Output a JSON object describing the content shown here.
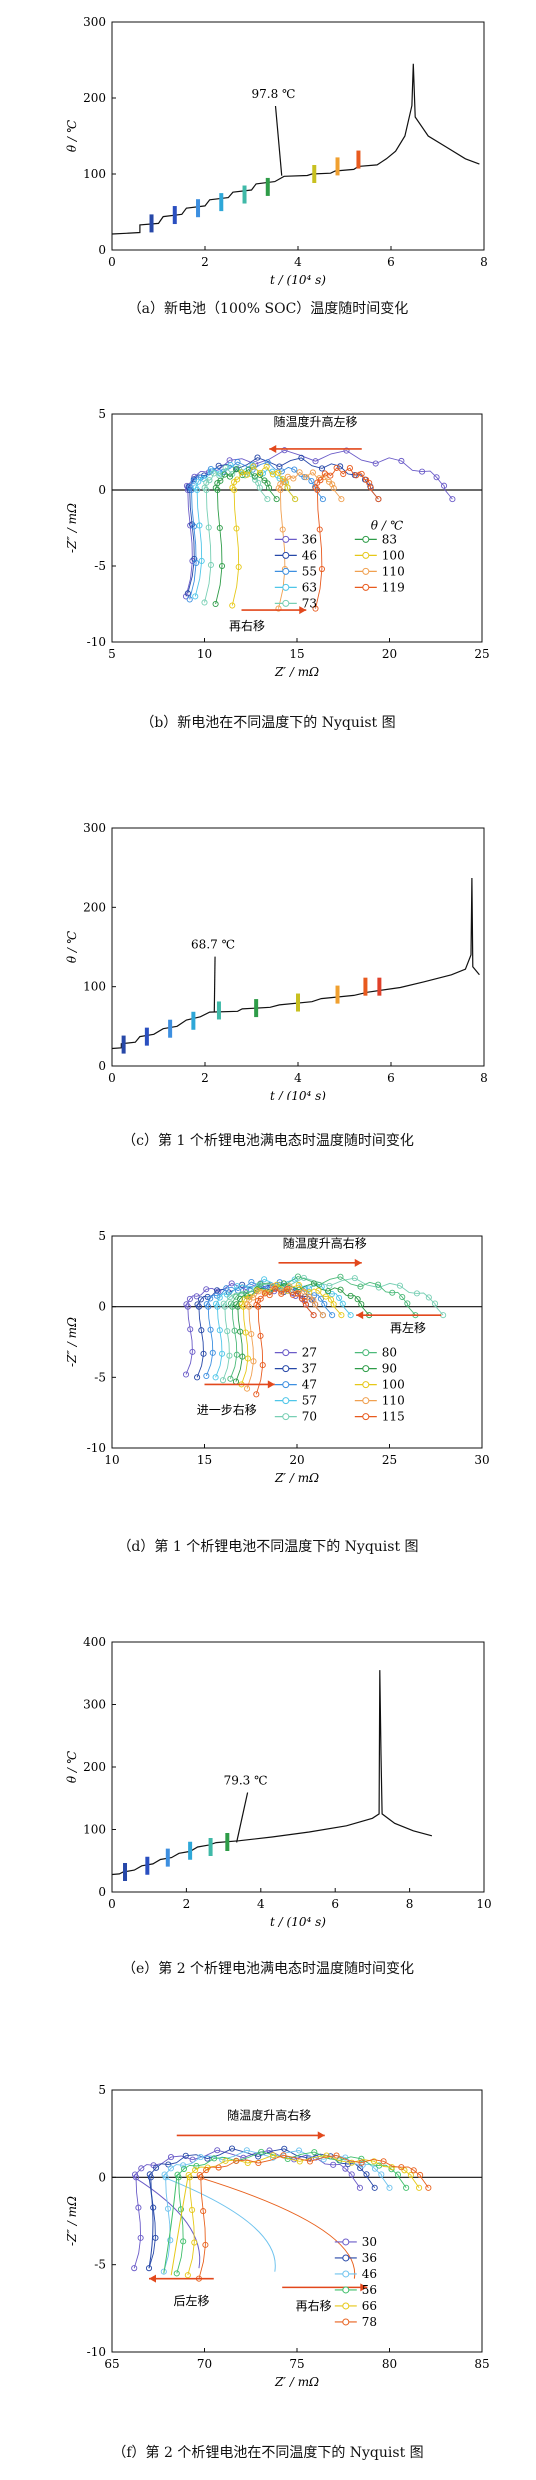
{
  "charts": [
    {
      "id": "a",
      "kind": "temp",
      "caption": "（a）新电池（100% SOC）温度随时间变化",
      "ylabel": "θ / ℃",
      "xlabel": "t / (10⁴ s)",
      "xlim": [
        0,
        8
      ],
      "ylim": [
        0,
        300
      ],
      "xticks": [
        0,
        2,
        4,
        6,
        8
      ],
      "yticks": [
        0,
        100,
        200,
        300
      ],
      "annotation": {
        "text": "97.8 ℃",
        "x": 3.65,
        "y": 97.8,
        "tx": 3.0,
        "ty": 200
      },
      "line": [
        [
          0,
          21
        ],
        [
          0.3,
          22
        ],
        [
          0.6,
          23
        ],
        [
          0.6,
          33
        ],
        [
          1.0,
          35
        ],
        [
          1.1,
          44
        ],
        [
          1.5,
          47
        ],
        [
          1.6,
          55
        ],
        [
          2.0,
          58
        ],
        [
          2.1,
          66
        ],
        [
          2.5,
          69
        ],
        [
          2.6,
          76
        ],
        [
          3.0,
          79
        ],
        [
          3.1,
          87
        ],
        [
          3.5,
          90
        ],
        [
          3.7,
          97
        ],
        [
          4.2,
          98
        ],
        [
          4.3,
          100
        ],
        [
          4.7,
          101
        ],
        [
          4.8,
          104
        ],
        [
          5.2,
          106
        ],
        [
          5.3,
          110
        ],
        [
          5.7,
          112
        ],
        [
          5.9,
          120
        ],
        [
          6.1,
          130
        ],
        [
          6.3,
          150
        ],
        [
          6.45,
          190
        ],
        [
          6.48,
          245
        ],
        [
          6.52,
          175
        ],
        [
          6.8,
          150
        ],
        [
          7.2,
          135
        ],
        [
          7.6,
          120
        ],
        [
          7.9,
          113
        ]
      ],
      "markers": [
        [
          0.85,
          35
        ],
        [
          1.35,
          46
        ],
        [
          1.85,
          55
        ],
        [
          2.35,
          63
        ],
        [
          2.85,
          73
        ],
        [
          3.35,
          83
        ],
        [
          4.35,
          100
        ],
        [
          4.85,
          110
        ],
        [
          5.3,
          119
        ]
      ]
    },
    {
      "id": "b",
      "kind": "nyq",
      "caption": "（b）新电池在不同温度下的 Nyquist 图",
      "ylabel": "-Z″ / mΩ",
      "xlabel": "Z′ / mΩ",
      "xlim": [
        5,
        25
      ],
      "ylim": [
        -10,
        5
      ],
      "xticks": [
        5,
        10,
        15,
        20,
        25
      ],
      "yticks": [
        -10,
        -5,
        0,
        5
      ],
      "arrows": [
        {
          "text": "随温度升高左移",
          "x1": 18.5,
          "x2": 13.5,
          "y": 2.7,
          "tx": 16.0,
          "ty": 4.2
        },
        {
          "text": "再右移",
          "x1": 12.0,
          "x2": 15.5,
          "y": -7.9,
          "tx": 12.3,
          "ty": -9.2
        }
      ],
      "legend_title": "θ / ℃",
      "legend": [
        "36",
        "83",
        "46",
        "100",
        "55",
        "110",
        "63",
        "119",
        "73"
      ],
      "series": [
        {
          "name": "36",
          "start": 9.0,
          "end": 23.0,
          "peak": 2.7,
          "depth": -7.0,
          "color": "#6b5cc8",
          "tail": 0
        },
        {
          "name": "46",
          "start": 9.1,
          "end": 19.0,
          "peak": 2.2,
          "depth": -6.8,
          "color": "#2748a8",
          "tail": 0
        },
        {
          "name": "55",
          "start": 9.2,
          "end": 16.0,
          "peak": 1.9,
          "depth": -7.2,
          "color": "#3d8fe0",
          "tail": 0
        },
        {
          "name": "63",
          "start": 9.5,
          "end": 14.5,
          "peak": 1.7,
          "depth": -7.0,
          "color": "#4fc6e8",
          "tail": 0
        },
        {
          "name": "73",
          "start": 10.0,
          "end": 13.0,
          "peak": 1.5,
          "depth": -7.4,
          "color": "#78cfb4",
          "tail": 0
        },
        {
          "name": "83",
          "start": 10.6,
          "end": 13.5,
          "peak": 1.4,
          "depth": -7.5,
          "color": "#2e9c48",
          "tail": 0
        },
        {
          "name": "100",
          "start": 11.5,
          "end": 14.5,
          "peak": 1.6,
          "depth": -7.6,
          "color": "#e6c818",
          "tail": 0
        },
        {
          "name": "110",
          "start": 14.0,
          "end": 17.0,
          "peak": 1.2,
          "depth": -7.8,
          "color": "#f0a050",
          "tail": 0
        },
        {
          "name": "119",
          "start": 16.0,
          "end": 19.0,
          "peak": 1.5,
          "depth": -7.8,
          "color": "#e85a1e",
          "tail": 0
        }
      ]
    },
    {
      "id": "c",
      "kind": "temp",
      "caption": "（c）第 1 个析锂电池满电态时温度随时间变化",
      "ylabel": "θ / ℃",
      "xlabel": "t / (10⁴ s)",
      "xlim": [
        0,
        8
      ],
      "ylim": [
        0,
        300
      ],
      "xticks": [
        0,
        2,
        4,
        6,
        8
      ],
      "yticks": [
        0,
        100,
        200,
        300
      ],
      "annotation": {
        "text": "68.7 ℃",
        "x": 2.2,
        "y": 68.7,
        "tx": 1.7,
        "ty": 148
      },
      "line": [
        [
          0,
          22
        ],
        [
          0.2,
          23
        ],
        [
          0.2,
          28
        ],
        [
          0.5,
          30
        ],
        [
          0.6,
          37
        ],
        [
          0.9,
          40
        ],
        [
          1.1,
          47
        ],
        [
          1.4,
          50
        ],
        [
          1.6,
          58
        ],
        [
          1.9,
          62
        ],
        [
          2.1,
          68
        ],
        [
          2.7,
          69
        ],
        [
          2.8,
          72
        ],
        [
          3.4,
          74
        ],
        [
          3.6,
          77
        ],
        [
          4.3,
          81
        ],
        [
          4.5,
          85
        ],
        [
          5.2,
          89
        ],
        [
          5.5,
          93
        ],
        [
          6.2,
          99
        ],
        [
          6.7,
          106
        ],
        [
          7.3,
          115
        ],
        [
          7.6,
          122
        ],
        [
          7.72,
          140
        ],
        [
          7.74,
          237
        ],
        [
          7.76,
          125
        ],
        [
          7.9,
          115
        ]
      ],
      "markers": [
        [
          0.25,
          27
        ],
        [
          0.75,
          37
        ],
        [
          1.25,
          47
        ],
        [
          1.75,
          57
        ],
        [
          2.3,
          70
        ],
        [
          3.1,
          73
        ],
        [
          4.0,
          80
        ],
        [
          4.85,
          90
        ],
        [
          5.45,
          100
        ],
        [
          5.75,
          100
        ]
      ]
    },
    {
      "id": "d",
      "kind": "nyq",
      "caption": "（d）第 1 个析锂电池不同温度下的 Nyquist 图",
      "ylabel": "-Z″ / mΩ",
      "xlabel": "Z′ / mΩ",
      "xlim": [
        10,
        30
      ],
      "ylim": [
        -10,
        5
      ],
      "xticks": [
        10,
        15,
        20,
        25,
        30
      ],
      "yticks": [
        -10,
        -5,
        0,
        5
      ],
      "arrows": [
        {
          "text": "随温度升高右移",
          "x1": 19.0,
          "x2": 23.5,
          "y": 3.1,
          "tx": 21.5,
          "ty": 4.2
        },
        {
          "text": "再左移",
          "x1": 27.8,
          "x2": 23.2,
          "y": -0.6,
          "tx": 26.0,
          "ty": -1.8
        },
        {
          "text": "进一步右移",
          "x1": 15.0,
          "x2": 18.8,
          "y": -5.5,
          "tx": 16.2,
          "ty": -7.6
        }
      ],
      "legend_title": "",
      "legend": [
        "27",
        "80",
        "37",
        "90",
        "47",
        "100",
        "57",
        "110",
        "70",
        "115"
      ],
      "series": [
        {
          "name": "27",
          "start": 14.0,
          "end": 20.5,
          "peak": 1.7,
          "depth": -4.8,
          "color": "#6b5cc8",
          "tail": 0
        },
        {
          "name": "37",
          "start": 14.6,
          "end": 21.0,
          "peak": 1.6,
          "depth": -5.0,
          "color": "#2748a8",
          "tail": 0
        },
        {
          "name": "47",
          "start": 15.1,
          "end": 21.5,
          "peak": 1.8,
          "depth": -4.9,
          "color": "#3d8fe0",
          "tail": 0
        },
        {
          "name": "57",
          "start": 15.6,
          "end": 22.5,
          "peak": 2.0,
          "depth": -5.0,
          "color": "#4fc6e8",
          "tail": 0
        },
        {
          "name": "70",
          "start": 16.0,
          "end": 27.5,
          "peak": 2.1,
          "depth": -5.2,
          "color": "#78cfb4",
          "tail": 0
        },
        {
          "name": "80",
          "start": 16.4,
          "end": 26.0,
          "peak": 2.2,
          "depth": -5.1,
          "color": "#4cba7a",
          "tail": 0
        },
        {
          "name": "90",
          "start": 16.7,
          "end": 23.5,
          "peak": 1.7,
          "depth": -5.3,
          "color": "#2e9c48",
          "tail": 0
        },
        {
          "name": "100",
          "start": 17.0,
          "end": 22.0,
          "peak": 1.6,
          "depth": -5.5,
          "color": "#e6c818",
          "tail": 0
        },
        {
          "name": "110",
          "start": 17.3,
          "end": 21.0,
          "peak": 1.5,
          "depth": -5.8,
          "color": "#f0a050",
          "tail": 0
        },
        {
          "name": "115",
          "start": 17.8,
          "end": 20.5,
          "peak": 1.3,
          "depth": -6.2,
          "color": "#e85a1e",
          "tail": 0
        }
      ]
    },
    {
      "id": "e",
      "kind": "temp",
      "caption": "（e）第 2 个析锂电池满电态时温度随时间变化",
      "ylabel": "θ / ℃",
      "xlabel": "t / (10⁴ s)",
      "xlim": [
        0,
        10
      ],
      "ylim": [
        0,
        400
      ],
      "xticks": [
        0,
        2,
        4,
        6,
        8,
        10
      ],
      "yticks": [
        0,
        100,
        200,
        300,
        400
      ],
      "annotation": {
        "text": "79.3 ℃",
        "x": 3.35,
        "y": 79.3,
        "tx": 3.0,
        "ty": 172
      },
      "line": [
        [
          0,
          28
        ],
        [
          0.2,
          29
        ],
        [
          0.3,
          32
        ],
        [
          0.6,
          35
        ],
        [
          0.8,
          42
        ],
        [
          1.1,
          45
        ],
        [
          1.3,
          52
        ],
        [
          1.6,
          55
        ],
        [
          1.8,
          62
        ],
        [
          2.1,
          65
        ],
        [
          2.3,
          72
        ],
        [
          2.6,
          75
        ],
        [
          2.8,
          79
        ],
        [
          3.4,
          82
        ],
        [
          4.3,
          88
        ],
        [
          5.3,
          96
        ],
        [
          6.3,
          106
        ],
        [
          7.0,
          118
        ],
        [
          7.18,
          125
        ],
        [
          7.2,
          355
        ],
        [
          7.23,
          220
        ],
        [
          7.26,
          125
        ],
        [
          7.6,
          110
        ],
        [
          8.1,
          98
        ],
        [
          8.6,
          90
        ]
      ],
      "markers": [
        [
          0.35,
          32
        ],
        [
          0.95,
          42
        ],
        [
          1.5,
          55
        ],
        [
          2.1,
          66
        ],
        [
          2.65,
          72
        ],
        [
          3.1,
          80
        ]
      ]
    },
    {
      "id": "f",
      "kind": "nyq",
      "caption": "（f）第 2 个析锂电池在不同温度下的 Nyquist 图",
      "ylabel": "-Z″ / mΩ",
      "xlabel": "Z′ / mΩ",
      "xlim": [
        65,
        85
      ],
      "ylim": [
        -10,
        5
      ],
      "xticks": [
        65,
        70,
        75,
        80,
        85
      ],
      "yticks": [
        -10,
        -5,
        0,
        5
      ],
      "arrows": [
        {
          "text": "随温度升高右移",
          "x1": 68.5,
          "x2": 76.5,
          "y": 2.4,
          "tx": 73.5,
          "ty": 3.3
        },
        {
          "text": "后左移",
          "x1": 70.5,
          "x2": 67.0,
          "y": -5.8,
          "tx": 69.3,
          "ty": -7.3
        },
        {
          "text": "再右移",
          "x1": 74.2,
          "x2": 78.8,
          "y": -6.3,
          "tx": 75.9,
          "ty": -7.6
        }
      ],
      "legend_title": "",
      "legend": [
        "30",
        "36",
        "46",
        "56",
        "66",
        "78"
      ],
      "series": [
        {
          "name": "30",
          "start": 66.2,
          "end": 78.0,
          "peak": 1.6,
          "depth": -5.2,
          "color": "#6b5cc8",
          "tail": 69.7
        },
        {
          "name": "36",
          "start": 67.0,
          "end": 78.8,
          "peak": 1.7,
          "depth": -5.2,
          "color": "#2748a8",
          "tail": 67.0
        },
        {
          "name": "46",
          "start": 67.8,
          "end": 79.6,
          "peak": 1.6,
          "depth": -5.4,
          "color": "#6fc3ee",
          "tail": 73.8
        },
        {
          "name": "56",
          "start": 68.5,
          "end": 80.5,
          "peak": 1.5,
          "depth": -5.5,
          "color": "#3fbf6a",
          "tail": 67.8
        },
        {
          "name": "66",
          "start": 69.1,
          "end": 81.2,
          "peak": 1.3,
          "depth": -5.6,
          "color": "#e6c818",
          "tail": 68.2
        },
        {
          "name": "78",
          "start": 69.7,
          "end": 81.7,
          "peak": 1.3,
          "depth": -5.8,
          "color": "#e8621e",
          "tail": 78.1
        }
      ]
    }
  ]
}
